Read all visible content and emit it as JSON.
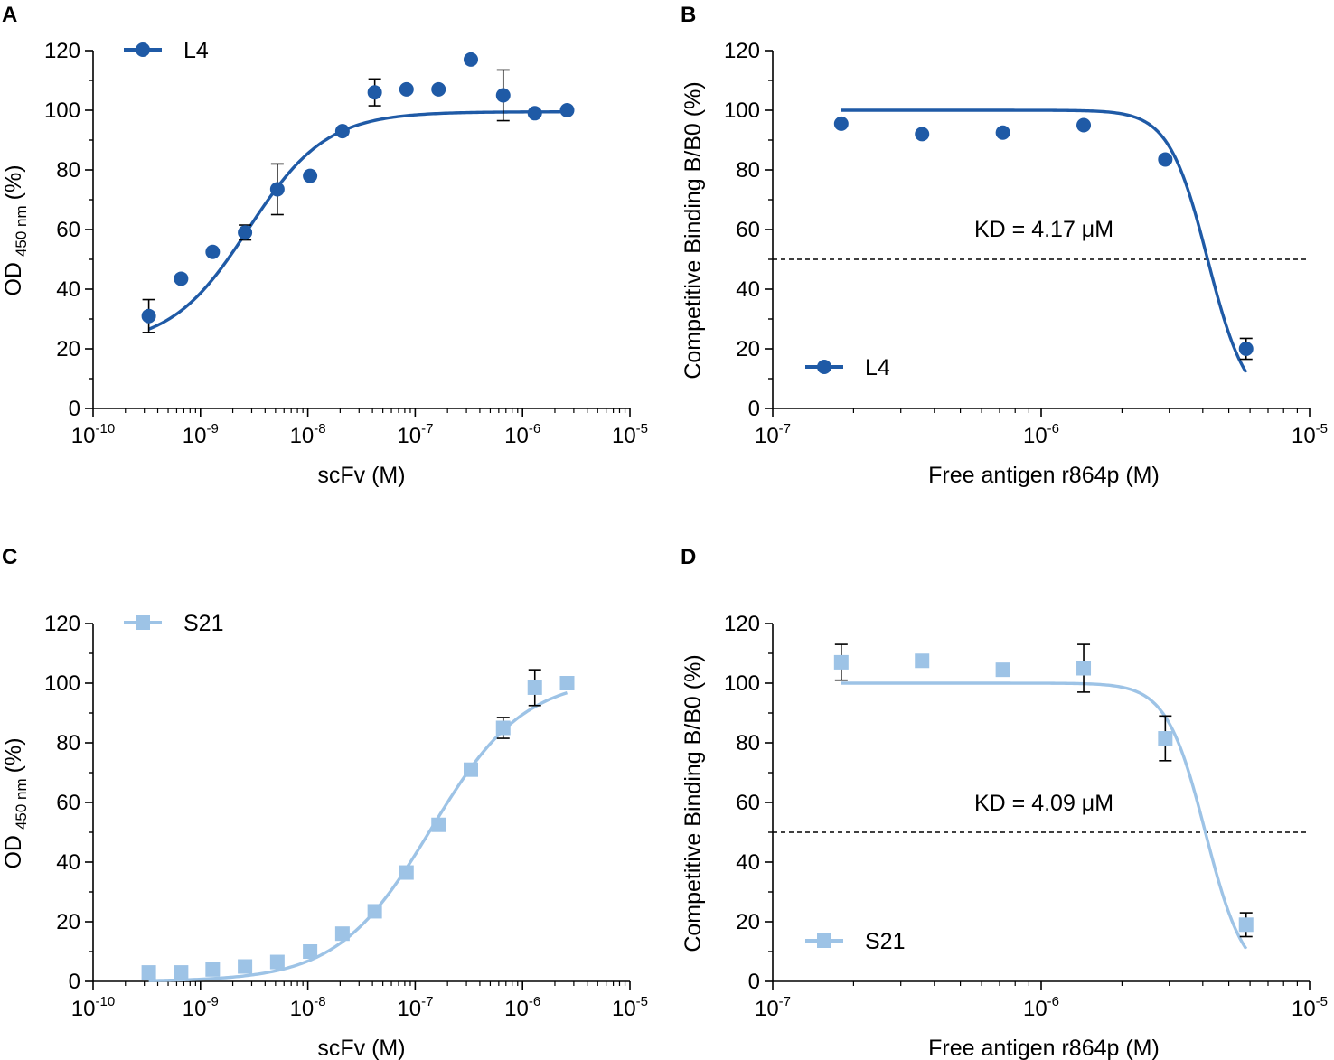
{
  "colors": {
    "L4": "#1f5aa6",
    "S21": "#9dc3e6",
    "axis": "#000000"
  },
  "chart_data": [
    {
      "panel": "A",
      "type": "scatter",
      "xscale": "log",
      "xlim": [
        1e-10,
        1e-05
      ],
      "ylim": [
        0,
        120
      ],
      "yticks": [
        0,
        20,
        40,
        60,
        80,
        100,
        120
      ],
      "xtick_base": "10",
      "xtick_exps": [
        "-10",
        "-9",
        "-8",
        "-7",
        "-6",
        "-5"
      ],
      "xlabel": "scFv (M)",
      "ylabel_main": "OD",
      "ylabel_sub": "450 nm",
      "ylabel_unit": "(%)",
      "series": [
        {
          "name": "L4",
          "marker": "circle",
          "x": [
            3.3e-10,
            6.6e-10,
            1.3e-09,
            2.6e-09,
            5.2e-09,
            1.05e-08,
            2.1e-08,
            4.2e-08,
            8.3e-08,
            1.65e-07,
            3.3e-07,
            6.6e-07,
            1.3e-06,
            2.6e-06
          ],
          "y": [
            31,
            43.5,
            52.5,
            59,
            73.5,
            78,
            93,
            106,
            107,
            107,
            117,
            105,
            99,
            100
          ],
          "err": [
            5.5,
            0,
            0,
            2.5,
            8.5,
            0,
            0,
            4.5,
            0,
            0,
            0,
            8.5,
            0,
            0
          ],
          "fit": {
            "bottom": 21,
            "top": 99.5,
            "ec50": 2.8e-09,
            "hill": 1.2,
            "xmin": 3.3e-10,
            "xmax": 2.6e-06
          }
        }
      ],
      "legend": {
        "position": "top-left"
      }
    },
    {
      "panel": "B",
      "type": "scatter",
      "xscale": "log",
      "xlim": [
        1e-07,
        1e-05
      ],
      "ylim": [
        0,
        120
      ],
      "yticks": [
        0,
        20,
        40,
        60,
        80,
        100,
        120
      ],
      "xtick_base": "10",
      "xtick_exps": [
        "-7",
        "-6",
        "-5"
      ],
      "xlabel": "Free antigen r864p (M)",
      "ylabel": "Competitive Binding B/B0 (%)",
      "reference_line": 50,
      "annotation": "KD = 4.17 μM",
      "series": [
        {
          "name": "L4",
          "marker": "circle",
          "x": [
            1.8e-07,
            3.6e-07,
            7.2e-07,
            1.44e-06,
            2.9e-06,
            5.8e-06
          ],
          "y": [
            95.5,
            92,
            92.5,
            95,
            83.5,
            20
          ],
          "err": [
            0,
            0,
            0,
            0,
            0,
            3.5
          ],
          "fit": {
            "bottom": 0,
            "top": 100,
            "ec50": 4.17e-06,
            "hill": 6,
            "xmin": 1.8e-07,
            "xmax": 5.8e-06
          }
        }
      ],
      "legend": {
        "position": "bottom-left"
      }
    },
    {
      "panel": "C",
      "type": "scatter",
      "xscale": "log",
      "xlim": [
        1e-10,
        1e-05
      ],
      "ylim": [
        0,
        120
      ],
      "yticks": [
        0,
        20,
        40,
        60,
        80,
        100,
        120
      ],
      "xtick_base": "10",
      "xtick_exps": [
        "-10",
        "-9",
        "-8",
        "-7",
        "-6",
        "-5"
      ],
      "xlabel": "scFv (M)",
      "ylabel_main": "OD",
      "ylabel_sub": "450 nm",
      "ylabel_unit": "(%)",
      "series": [
        {
          "name": "S21",
          "marker": "square",
          "x": [
            3.3e-10,
            6.6e-10,
            1.3e-09,
            2.6e-09,
            5.2e-09,
            1.05e-08,
            2.1e-08,
            4.2e-08,
            8.3e-08,
            1.65e-07,
            3.3e-07,
            6.6e-07,
            1.3e-06,
            2.6e-06
          ],
          "y": [
            3,
            3,
            4,
            5,
            6.5,
            10,
            16,
            23.5,
            36.5,
            52.5,
            71,
            85,
            98.5,
            100
          ],
          "err": [
            0,
            0,
            0,
            0,
            0,
            0,
            0,
            0,
            0,
            0,
            0,
            3.5,
            6,
            0
          ],
          "fit": {
            "bottom": 0,
            "top": 102,
            "ec50": 1.4e-07,
            "hill": 1.0,
            "xmin": 3.3e-10,
            "xmax": 2.6e-06
          }
        }
      ],
      "legend": {
        "position": "top-left"
      }
    },
    {
      "panel": "D",
      "type": "scatter",
      "xscale": "log",
      "xlim": [
        1e-07,
        1e-05
      ],
      "ylim": [
        0,
        120
      ],
      "yticks": [
        0,
        20,
        40,
        60,
        80,
        100,
        120
      ],
      "xtick_base": "10",
      "xtick_exps": [
        "-7",
        "-6",
        "-5"
      ],
      "xlabel": "Free antigen r864p (M)",
      "ylabel": "Competitive Binding B/B0 (%)",
      "reference_line": 50,
      "annotation": "KD = 4.09 μM",
      "series": [
        {
          "name": "S21",
          "marker": "square",
          "x": [
            1.8e-07,
            3.6e-07,
            7.2e-07,
            1.44e-06,
            2.9e-06,
            5.8e-06
          ],
          "y": [
            107,
            107.5,
            104.5,
            105,
            81.5,
            19
          ],
          "err": [
            6,
            0,
            0,
            8,
            7.5,
            4
          ],
          "fit": {
            "bottom": 0,
            "top": 100,
            "ec50": 4.09e-06,
            "hill": 6,
            "xmin": 1.8e-07,
            "xmax": 5.8e-06
          }
        }
      ],
      "legend": {
        "position": "bottom-left"
      }
    }
  ]
}
